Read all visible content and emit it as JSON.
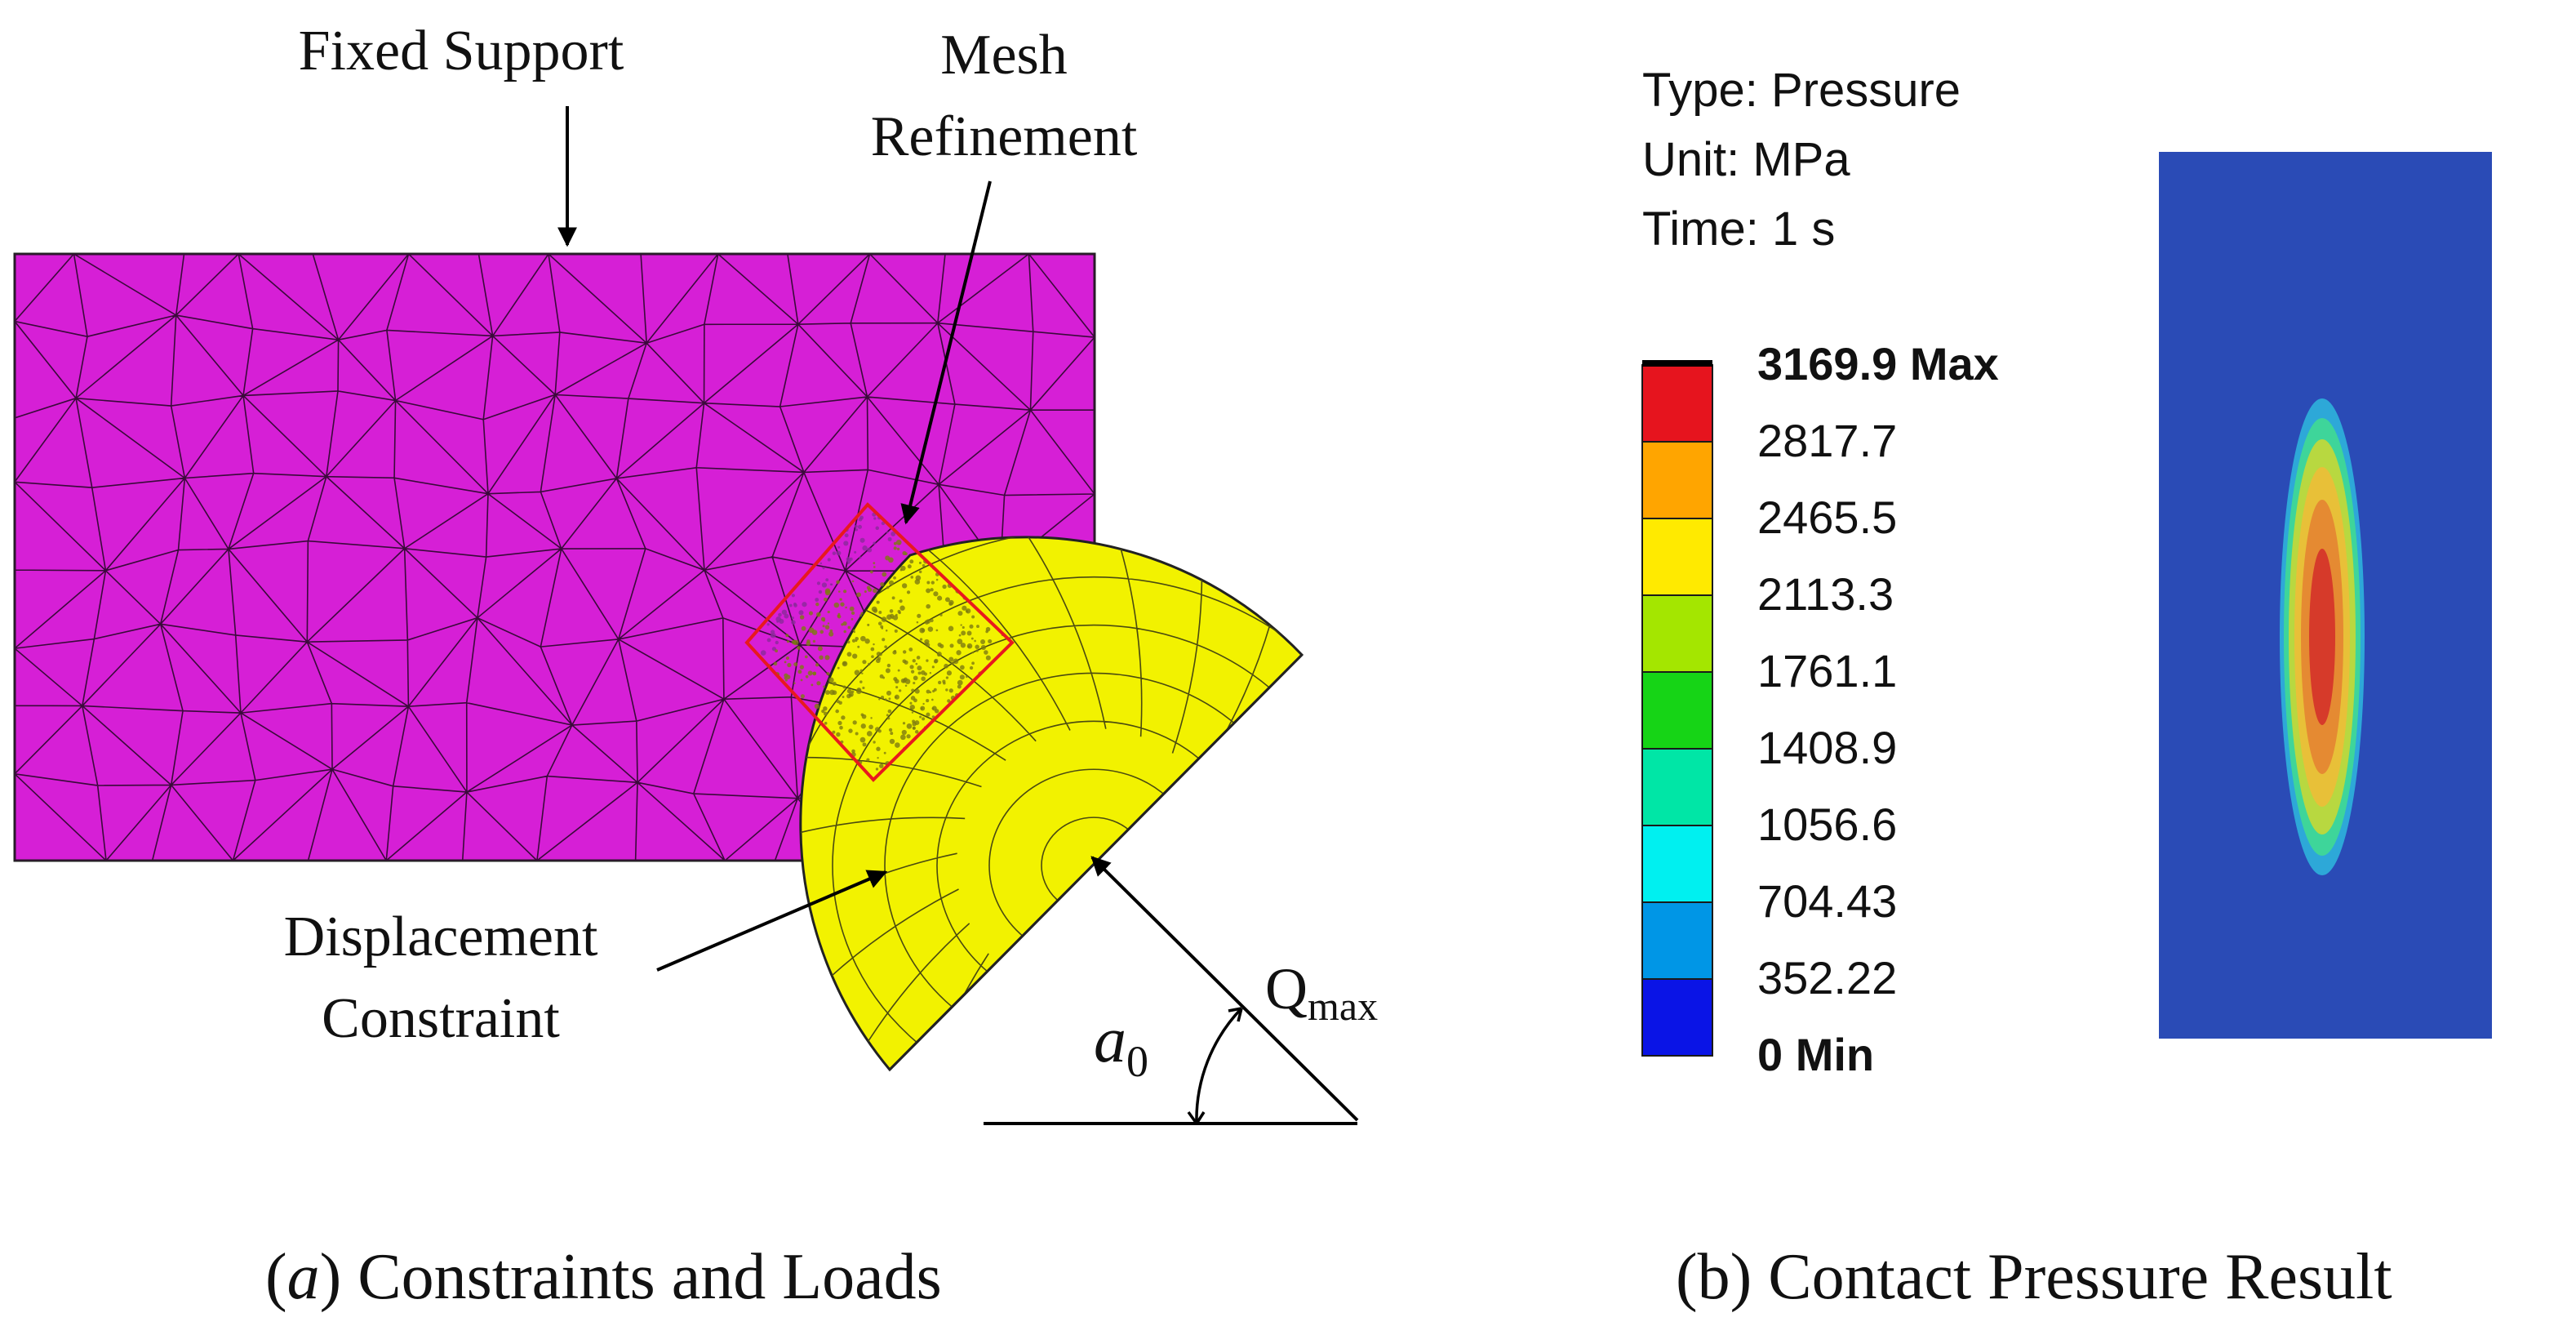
{
  "panel_a": {
    "caption_letter": "a",
    "caption_text": "Constraints and Loads",
    "labels": {
      "fixed_support": "Fixed Support",
      "mesh_line1": "Mesh",
      "mesh_line2": "Refinement",
      "displacement_line1": "Displacement",
      "displacement_line2": "Constraint",
      "q_main": "Q",
      "q_sub": "max",
      "angle_main": "a",
      "angle_sub": "0"
    },
    "colors": {
      "block": "#d61fd6",
      "sphere": "#f2f200",
      "refinement_box": "#e8191e"
    }
  },
  "panel_b": {
    "caption": "(b) Contact Pressure Result",
    "type_line": "Type: Pressure",
    "unit_line": "Unit: MPa",
    "time_line": "Time: 1 s",
    "legend": {
      "entries": [
        "3169.9 Max",
        "2817.7",
        "2465.5",
        "2113.3",
        "1761.1",
        "1408.9",
        "1056.6",
        "704.43",
        "352.22",
        "0 Min"
      ],
      "colors": [
        "#e6141e",
        "#ffa500",
        "#ffea00",
        "#a4e600",
        "#16d416",
        "#00e6a6",
        "#00f0f0",
        "#0096e6",
        "#0a14e6"
      ]
    },
    "field_colors": {
      "background": "#2a4bb6",
      "contours": [
        "#2da8d8",
        "#3ed59a",
        "#b8d840",
        "#e8c038",
        "#e58a32",
        "#d63a2a"
      ]
    }
  }
}
